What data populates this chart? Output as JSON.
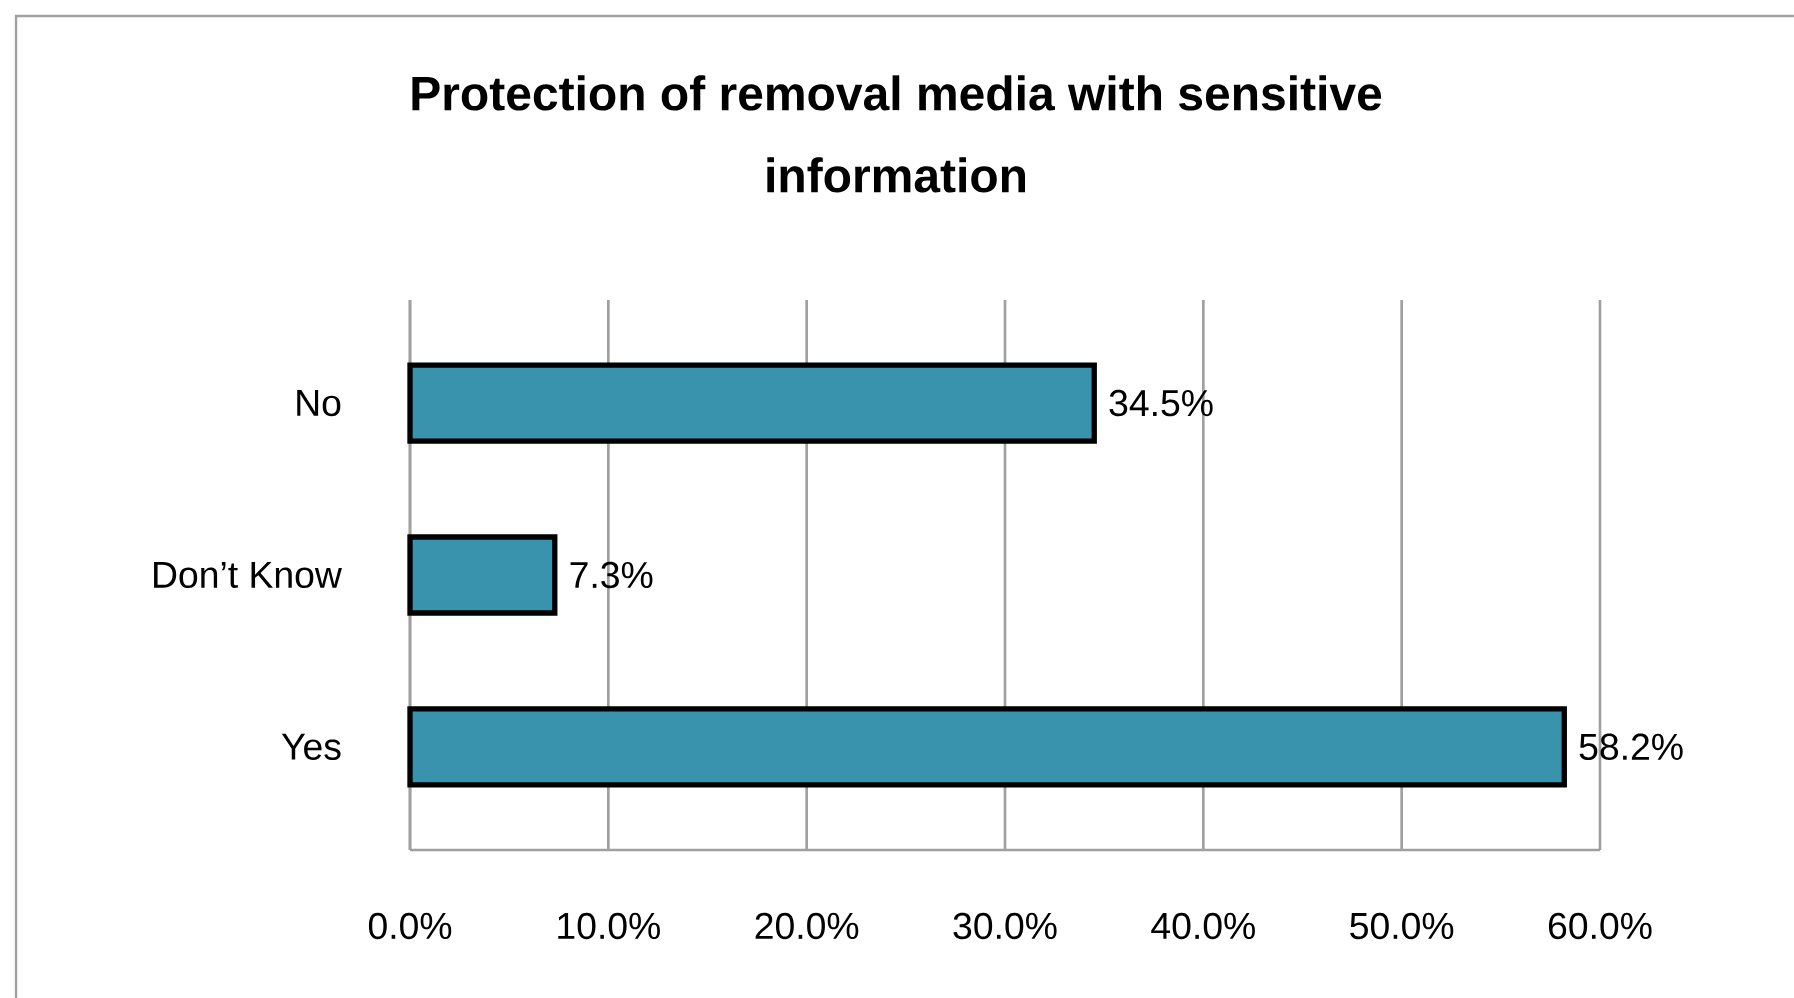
{
  "chart_data": {
    "type": "bar",
    "orientation": "horizontal",
    "title": "Protection of removal media with sensitive information",
    "categories": [
      "No",
      "Don’t Know",
      "Yes"
    ],
    "values": [
      34.5,
      7.3,
      58.2
    ],
    "value_labels": [
      "34.5%",
      "7.3%",
      "58.2%"
    ],
    "color": "#3a93ad",
    "xlim": [
      0,
      60
    ],
    "xticks": [
      {
        "value": 0,
        "label": "0.0%"
      },
      {
        "value": 10,
        "label": "10.0%"
      },
      {
        "value": 20,
        "label": "20.0%"
      },
      {
        "value": 30,
        "label": "30.0%"
      },
      {
        "value": 40,
        "label": "40.0%"
      },
      {
        "value": 50,
        "label": "50.0%"
      },
      {
        "value": 60,
        "label": "60.0%"
      }
    ],
    "grid": "x"
  }
}
